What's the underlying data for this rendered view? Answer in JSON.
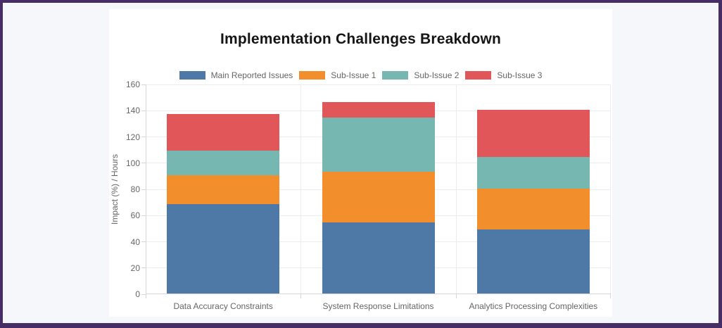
{
  "page": {
    "background_color": "#f6f7fa",
    "border_color": "#472d66",
    "card_color": "#ffffff"
  },
  "chart_data": {
    "type": "bar",
    "stacked": true,
    "title": "Implementation Challenges Breakdown",
    "ylabel": "Impact (%) / Hours",
    "xlabel": "",
    "ylim": [
      0,
      160
    ],
    "ytick_step": 20,
    "grid": true,
    "legend_position": "top",
    "categories": [
      "Data Accuracy Constraints",
      "System Response Limitations",
      "Analytics Processing Complexities"
    ],
    "series": [
      {
        "name": "Main Reported Issues",
        "color": "#4e79a7",
        "values": [
          68,
          54,
          49
        ]
      },
      {
        "name": "Sub-Issue 1",
        "color": "#f28e2b",
        "values": [
          22,
          39,
          31
        ]
      },
      {
        "name": "Sub-Issue 2",
        "color": "#76b7b2",
        "values": [
          19,
          41,
          24
        ]
      },
      {
        "name": "Sub-Issue 3",
        "color": "#e15759",
        "values": [
          28,
          12,
          36
        ]
      }
    ],
    "stack_totals": [
      137,
      146,
      140
    ],
    "ytick_labels": [
      "0",
      "20",
      "40",
      "60",
      "80",
      "100",
      "120",
      "140",
      "160"
    ]
  }
}
